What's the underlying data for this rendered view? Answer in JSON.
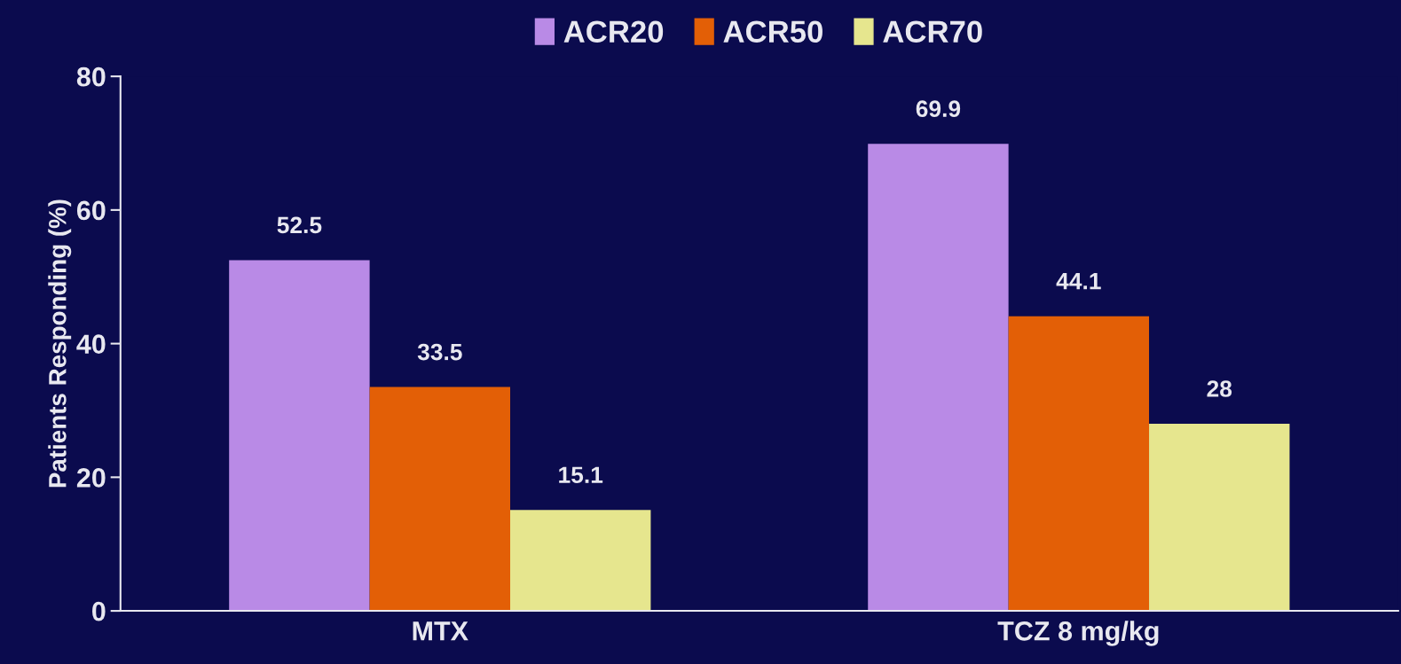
{
  "chart_data": {
    "type": "bar",
    "ylabel": "Patients Responding (%)",
    "categories": [
      "MTX",
      "TCZ 8 mg/kg"
    ],
    "series": [
      {
        "name": "ACR20",
        "color": "#b98ae6",
        "values": [
          52.5,
          69.9
        ]
      },
      {
        "name": "ACR50",
        "color": "#e35f06",
        "values": [
          33.5,
          44.1
        ]
      },
      {
        "name": "ACR70",
        "color": "#e6e68e",
        "values": [
          15.1,
          28
        ]
      }
    ],
    "ylim": [
      0,
      80
    ],
    "yticks": [
      0,
      20,
      40,
      60,
      80
    ],
    "data_labels": true,
    "legend": "top",
    "grid": false
  }
}
